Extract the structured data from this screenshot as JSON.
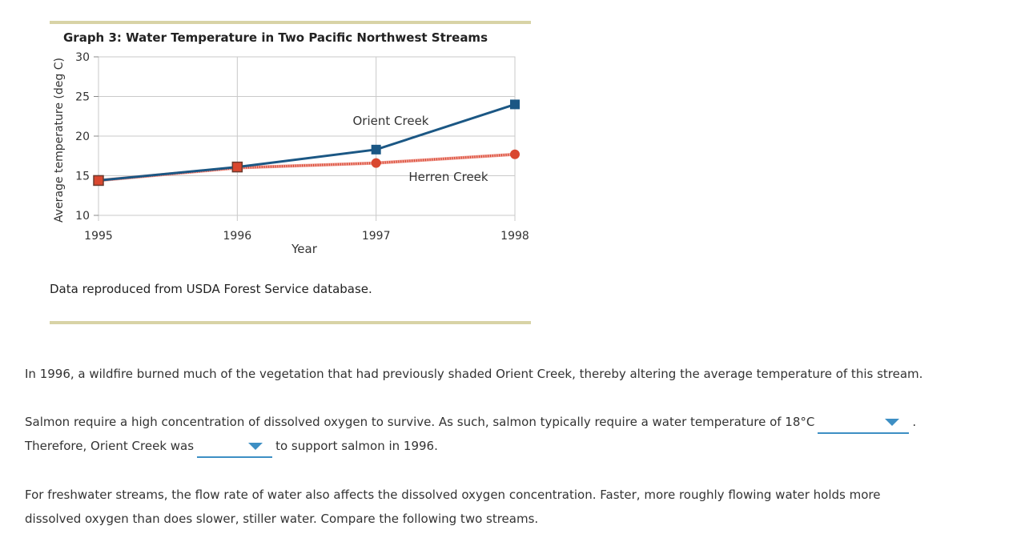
{
  "chart_data": {
    "type": "line",
    "title": "Graph 3: Water Temperature in Two Pacific Northwest Streams",
    "xlabel": "Year",
    "ylabel": "Average temperature (deg C)",
    "categories": [
      "1995",
      "1996",
      "1997",
      "1998"
    ],
    "ylim": [
      10,
      30
    ],
    "yticks": [
      10,
      15,
      20,
      25,
      30
    ],
    "grid": true,
    "series": [
      {
        "name": "Orient Creek",
        "values": [
          14.4,
          16.1,
          18.3,
          24.0
        ],
        "color": "#1b5784",
        "marker": "square",
        "style": "solid"
      },
      {
        "name": "Herren Creek",
        "values": [
          14.4,
          16.0,
          16.6,
          17.7
        ],
        "color": "#d9472f",
        "marker": "circle",
        "style": "dotted"
      }
    ]
  },
  "caption": "Data reproduced from USDA Forest Service database.",
  "questions": {
    "p1": "In 1996, a wildfire burned much of the vegetation that had previously shaded Orient Creek, thereby altering the average temperature of this stream.",
    "p2_a": "Salmon require a high concentration of dissolved oxygen to survive. As such, salmon typically require a water temperature of 18°C",
    "p2_a_end": ".",
    "p2_b": "Therefore, Orient Creek was",
    "p2_b_end": "to support salmon in 1996.",
    "p3_a": "For freshwater streams, the flow rate of water also affects the dissolved oxygen concentration. Faster, more roughly flowing water holds more",
    "p3_b": "dissolved oxygen than does slower, stiller water. Compare the following two streams."
  }
}
